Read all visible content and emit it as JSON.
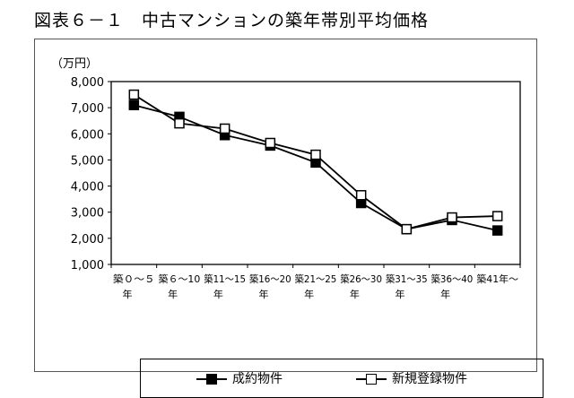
{
  "figure": {
    "title": "図表６－１　中古マンションの築年帯別平均価格"
  },
  "chart_data": {
    "type": "line",
    "title": "図表６－１　中古マンションの築年帯別平均価格",
    "unit_label": "（万円）",
    "xlabel": "",
    "ylabel": "",
    "ylim": [
      1000,
      8000
    ],
    "yticks": [
      1000,
      2000,
      3000,
      4000,
      5000,
      6000,
      7000,
      8000
    ],
    "ytick_labels": [
      "1,000",
      "2,000",
      "3,000",
      "4,000",
      "5,000",
      "6,000",
      "7,000",
      "8,000"
    ],
    "grid": false,
    "legend_position": "bottom",
    "categories": [
      "築０～５年",
      "築６～10年",
      "築11～15年",
      "築16～20年",
      "築21～25年",
      "築26～30年",
      "築31～35年",
      "築36～40年",
      "築41年～"
    ],
    "category_lines": [
      [
        "築０～５",
        "年"
      ],
      [
        "築６～10",
        "年"
      ],
      [
        "築11～15",
        "年"
      ],
      [
        "築16～20",
        "年"
      ],
      [
        "築21～25",
        "年"
      ],
      [
        "築26～30",
        "年"
      ],
      [
        "築31～35",
        "年"
      ],
      [
        "築36～40",
        "年"
      ],
      [
        "築41年～",
        ""
      ]
    ],
    "series": [
      {
        "name": "成約物件",
        "marker": "filled-square",
        "values": [
          7100,
          6650,
          5950,
          5550,
          4900,
          3350,
          2350,
          2700,
          2300
        ]
      },
      {
        "name": "新規登録物件",
        "marker": "open-square",
        "values": [
          7500,
          6400,
          6200,
          5650,
          5200,
          3650,
          2350,
          2800,
          2850
        ]
      }
    ]
  }
}
